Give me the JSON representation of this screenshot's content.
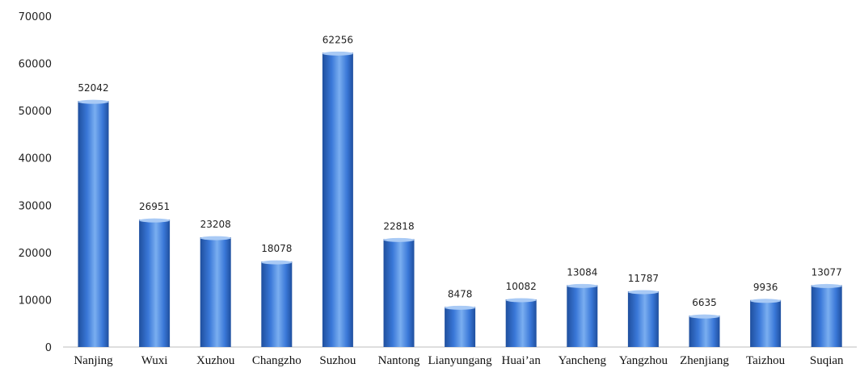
{
  "chart_data": {
    "type": "bar",
    "title": "",
    "xlabel": "",
    "ylabel": "",
    "categories": [
      "Nanjing",
      "Wuxi",
      "Xuzhou",
      "Changzho",
      "Suzhou",
      "Nantong",
      "Lianyungang",
      "Huai’an",
      "Yancheng",
      "Yangzhou",
      "Zhenjiang",
      "Taizhou",
      "Suqian"
    ],
    "values": [
      52042,
      26951,
      23208,
      18078,
      62256,
      22818,
      8478,
      10082,
      13084,
      11787,
      6635,
      9936,
      13077
    ],
    "data_labels": [
      "52042",
      "26951",
      "23208",
      "18078",
      "62256",
      "22818",
      "8478",
      "10082",
      "13084",
      "11787",
      "6635",
      "9936",
      "13077"
    ],
    "ylim": [
      0,
      70000
    ],
    "y_ticks": [
      0,
      10000,
      20000,
      30000,
      40000,
      50000,
      60000,
      70000
    ],
    "y_tick_labels": [
      "0",
      "10000",
      "20000",
      "30000",
      "40000",
      "50000",
      "60000",
      "70000"
    ],
    "grid": false,
    "legend": "none",
    "colors": {
      "bar_light": "#7aaef0",
      "bar_mid": "#3a78d8",
      "bar_dark": "#1f4f9e",
      "bar_top": "#a9caf5"
    }
  }
}
